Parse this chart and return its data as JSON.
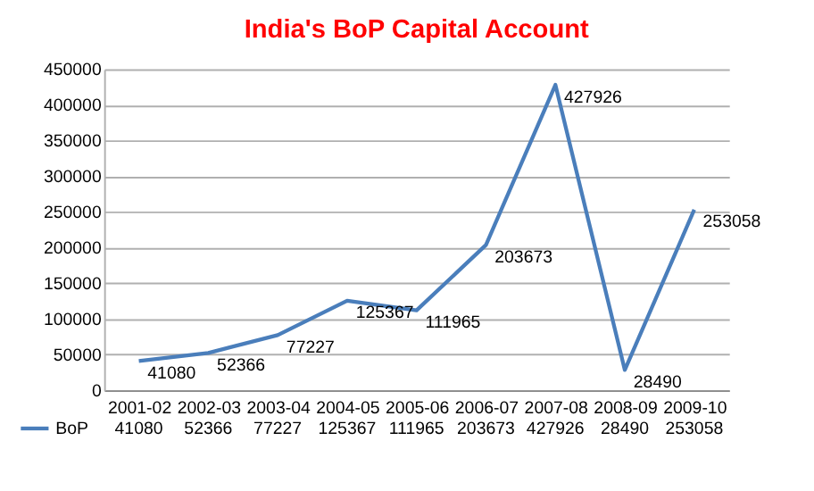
{
  "chart_data": {
    "type": "line",
    "title": "India's BoP Capital Account",
    "categories": [
      "2001-02",
      "2002-03",
      "2003-04",
      "2004-05",
      "2005-06",
      "2006-07",
      "2007-08",
      "2008-09",
      "2009-10"
    ],
    "series": [
      {
        "name": "BoP",
        "color": "#4a7ebb",
        "values": [
          41080,
          52366,
          77227,
          125367,
          111965,
          203673,
          427926,
          28490,
          253058
        ]
      }
    ],
    "annotations": [
      "41080",
      "52366",
      "77227",
      "125367",
      "111965",
      "203673",
      "427926",
      "28490",
      "253058"
    ],
    "ylim": [
      0,
      450000
    ],
    "yticks": [
      0,
      50000,
      100000,
      150000,
      200000,
      250000,
      300000,
      350000,
      400000,
      450000
    ],
    "grid": "y",
    "data_labels": true,
    "legend": "bottom left",
    "marker": "none",
    "line_style": "solid"
  }
}
